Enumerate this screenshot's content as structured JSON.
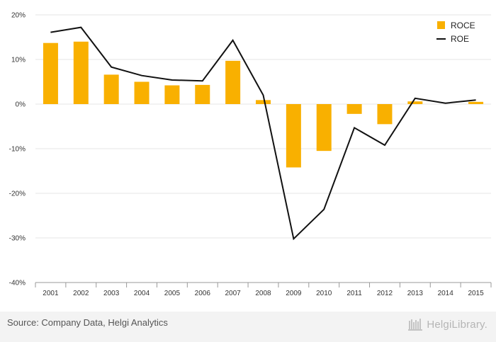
{
  "chart_data": {
    "type": "bar",
    "categories": [
      "2001",
      "2002",
      "2003",
      "2004",
      "2005",
      "2006",
      "2007",
      "2008",
      "2009",
      "2010",
      "2011",
      "2012",
      "2013",
      "2014",
      "2015"
    ],
    "ylim": [
      -40,
      20
    ],
    "yticks": [
      "20%",
      "10%",
      "0%",
      "-10%",
      "-20%",
      "-30%",
      "-40%"
    ],
    "ytick_values": [
      20,
      10,
      0,
      -10,
      -20,
      -30,
      -40
    ],
    "grid": true,
    "legend_position": "top-right",
    "series": [
      {
        "name": "ROCE",
        "kind": "bar",
        "color": "#f9b000",
        "values": [
          13.7,
          14.0,
          6.6,
          5.0,
          4.2,
          4.3,
          9.7,
          0.9,
          -14.2,
          -10.5,
          -2.2,
          -4.5,
          0.6,
          0.0,
          0.5
        ]
      },
      {
        "name": "ROE",
        "kind": "line",
        "color": "#111111",
        "values": [
          16.1,
          17.2,
          8.3,
          6.4,
          5.4,
          5.2,
          14.3,
          2.0,
          -30.2,
          -23.6,
          -5.3,
          -9.2,
          1.3,
          0.2,
          0.9
        ]
      }
    ]
  },
  "footer": {
    "source": "Source: Company Data, Helgi Analytics",
    "brand": "HelgiLibrary."
  }
}
